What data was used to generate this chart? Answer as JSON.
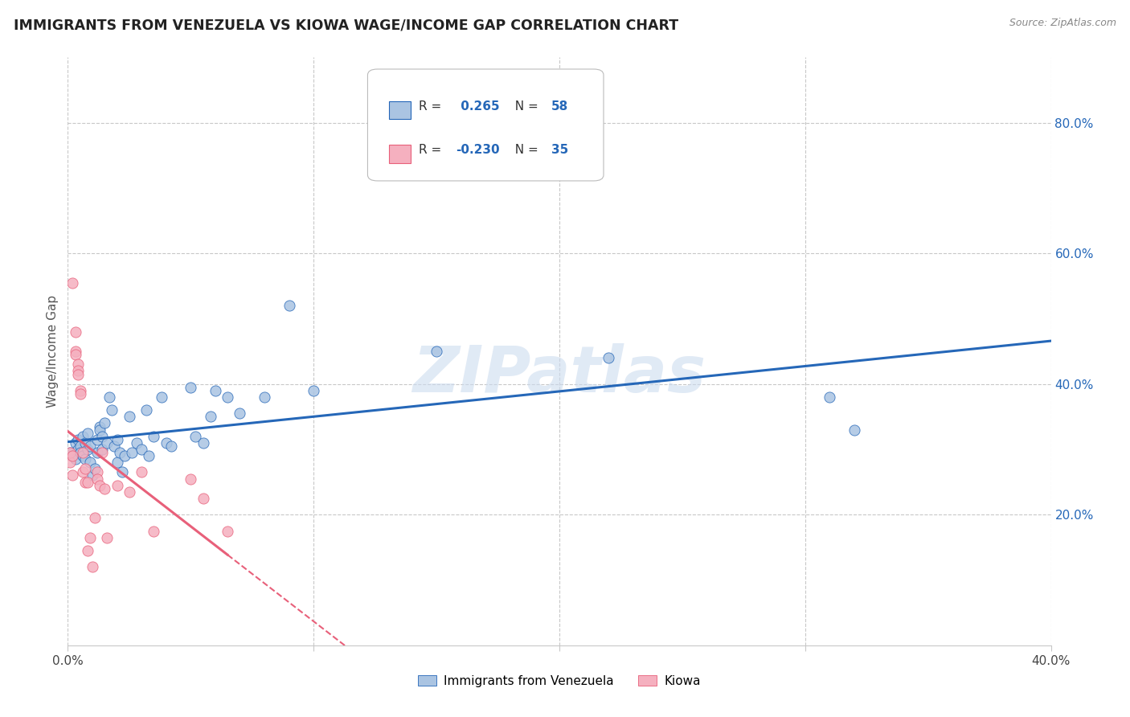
{
  "title": "IMMIGRANTS FROM VENEZUELA VS KIOWA WAGE/INCOME GAP CORRELATION CHART",
  "source": "Source: ZipAtlas.com",
  "ylabel": "Wage/Income Gap",
  "legend_label1": "Immigrants from Venezuela",
  "legend_label2": "Kiowa",
  "R1": 0.265,
  "N1": 58,
  "R2": -0.23,
  "N2": 35,
  "blue_color": "#aac4e2",
  "blue_line_color": "#2567b8",
  "pink_color": "#f5b0bf",
  "pink_line_color": "#e8607a",
  "background": "#ffffff",
  "grid_color": "#c8c8c8",
  "title_color": "#222222",
  "blue_scatter": [
    [
      0.001,
      0.295
    ],
    [
      0.002,
      0.29
    ],
    [
      0.003,
      0.285
    ],
    [
      0.003,
      0.31
    ],
    [
      0.004,
      0.3
    ],
    [
      0.004,
      0.315
    ],
    [
      0.005,
      0.305
    ],
    [
      0.005,
      0.295
    ],
    [
      0.006,
      0.32
    ],
    [
      0.006,
      0.29
    ],
    [
      0.007,
      0.31
    ],
    [
      0.007,
      0.285
    ],
    [
      0.008,
      0.325
    ],
    [
      0.008,
      0.3
    ],
    [
      0.009,
      0.305
    ],
    [
      0.009,
      0.28
    ],
    [
      0.01,
      0.26
    ],
    [
      0.011,
      0.27
    ],
    [
      0.012,
      0.315
    ],
    [
      0.012,
      0.295
    ],
    [
      0.013,
      0.335
    ],
    [
      0.013,
      0.33
    ],
    [
      0.014,
      0.32
    ],
    [
      0.014,
      0.3
    ],
    [
      0.015,
      0.34
    ],
    [
      0.016,
      0.31
    ],
    [
      0.017,
      0.38
    ],
    [
      0.018,
      0.36
    ],
    [
      0.019,
      0.305
    ],
    [
      0.02,
      0.315
    ],
    [
      0.02,
      0.28
    ],
    [
      0.021,
      0.295
    ],
    [
      0.022,
      0.265
    ],
    [
      0.023,
      0.29
    ],
    [
      0.025,
      0.35
    ],
    [
      0.026,
      0.295
    ],
    [
      0.028,
      0.31
    ],
    [
      0.03,
      0.3
    ],
    [
      0.032,
      0.36
    ],
    [
      0.033,
      0.29
    ],
    [
      0.035,
      0.32
    ],
    [
      0.038,
      0.38
    ],
    [
      0.04,
      0.31
    ],
    [
      0.042,
      0.305
    ],
    [
      0.05,
      0.395
    ],
    [
      0.052,
      0.32
    ],
    [
      0.055,
      0.31
    ],
    [
      0.058,
      0.35
    ],
    [
      0.06,
      0.39
    ],
    [
      0.065,
      0.38
    ],
    [
      0.07,
      0.355
    ],
    [
      0.08,
      0.38
    ],
    [
      0.09,
      0.52
    ],
    [
      0.1,
      0.39
    ],
    [
      0.15,
      0.45
    ],
    [
      0.22,
      0.44
    ],
    [
      0.31,
      0.38
    ],
    [
      0.32,
      0.33
    ]
  ],
  "pink_scatter": [
    [
      0.001,
      0.28
    ],
    [
      0.001,
      0.295
    ],
    [
      0.002,
      0.29
    ],
    [
      0.002,
      0.26
    ],
    [
      0.002,
      0.555
    ],
    [
      0.003,
      0.48
    ],
    [
      0.003,
      0.45
    ],
    [
      0.003,
      0.445
    ],
    [
      0.004,
      0.43
    ],
    [
      0.004,
      0.42
    ],
    [
      0.004,
      0.415
    ],
    [
      0.005,
      0.39
    ],
    [
      0.005,
      0.385
    ],
    [
      0.006,
      0.295
    ],
    [
      0.006,
      0.265
    ],
    [
      0.007,
      0.25
    ],
    [
      0.007,
      0.27
    ],
    [
      0.008,
      0.25
    ],
    [
      0.008,
      0.145
    ],
    [
      0.009,
      0.165
    ],
    [
      0.01,
      0.12
    ],
    [
      0.011,
      0.195
    ],
    [
      0.012,
      0.265
    ],
    [
      0.012,
      0.255
    ],
    [
      0.013,
      0.245
    ],
    [
      0.014,
      0.295
    ],
    [
      0.015,
      0.24
    ],
    [
      0.016,
      0.165
    ],
    [
      0.02,
      0.245
    ],
    [
      0.025,
      0.235
    ],
    [
      0.03,
      0.265
    ],
    [
      0.035,
      0.175
    ],
    [
      0.05,
      0.255
    ],
    [
      0.055,
      0.225
    ],
    [
      0.065,
      0.175
    ]
  ],
  "xmin": 0.0,
  "xmax": 0.4,
  "ymin": 0.0,
  "ymax": 0.9,
  "ytick_values": [
    0.2,
    0.4,
    0.6,
    0.8
  ],
  "xtick_positions": [
    0.0,
    0.1,
    0.2,
    0.3,
    0.4
  ],
  "watermark": "ZIPatlas"
}
